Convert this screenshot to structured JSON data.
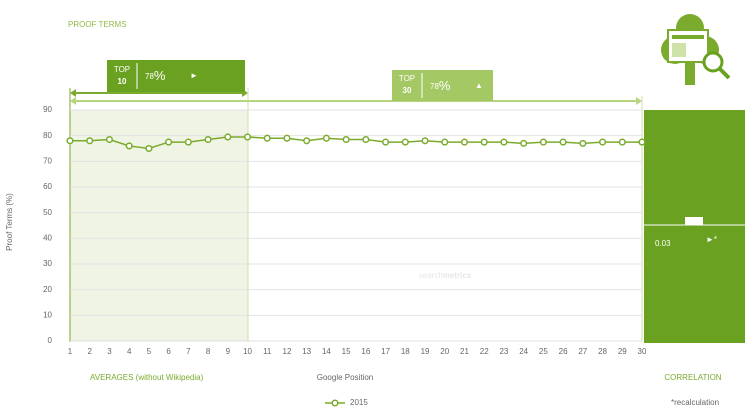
{
  "chart_data": {
    "type": "line",
    "title": "PROOF TERMS",
    "y_label": "Proof Terms (%)",
    "x_label": "Google Position",
    "categories": [
      1,
      2,
      3,
      4,
      5,
      6,
      7,
      8,
      9,
      10,
      11,
      12,
      13,
      14,
      15,
      16,
      17,
      18,
      19,
      20,
      21,
      22,
      23,
      24,
      25,
      26,
      27,
      28,
      29,
      30
    ],
    "series": [
      {
        "name": "2015",
        "color": "#7aab2c",
        "values": [
          78,
          78,
          78.5,
          76,
          75,
          77.5,
          77.5,
          78.5,
          79.5,
          79.5,
          79,
          79,
          78,
          79,
          78.5,
          78.5,
          77.5,
          77.5,
          78,
          77.5,
          77.5,
          77.5,
          77.5,
          77,
          77.5,
          77.5,
          77,
          77.5,
          77.5,
          77.5
        ]
      }
    ],
    "ylim": [
      0,
      90
    ],
    "yticks": [
      0,
      10,
      20,
      30,
      40,
      50,
      60,
      70,
      80,
      90
    ],
    "grid": true,
    "top10": {
      "top": "TOP",
      "rank": "10",
      "value": "78",
      "unit": "%",
      "arrow": "►"
    },
    "top30": {
      "top": "TOP",
      "rank": "30",
      "value": "78",
      "unit": "%",
      "arrow": "▲"
    },
    "averages": "AVERAGES",
    "averages_note": "(without Wikipedia)",
    "correlation_label": "CORRELATION",
    "correlation_value": "0.03",
    "correlation_arrow": "►*",
    "footnote": "*recalculation",
    "watermark_a": "search",
    "watermark_b": "metrics"
  }
}
